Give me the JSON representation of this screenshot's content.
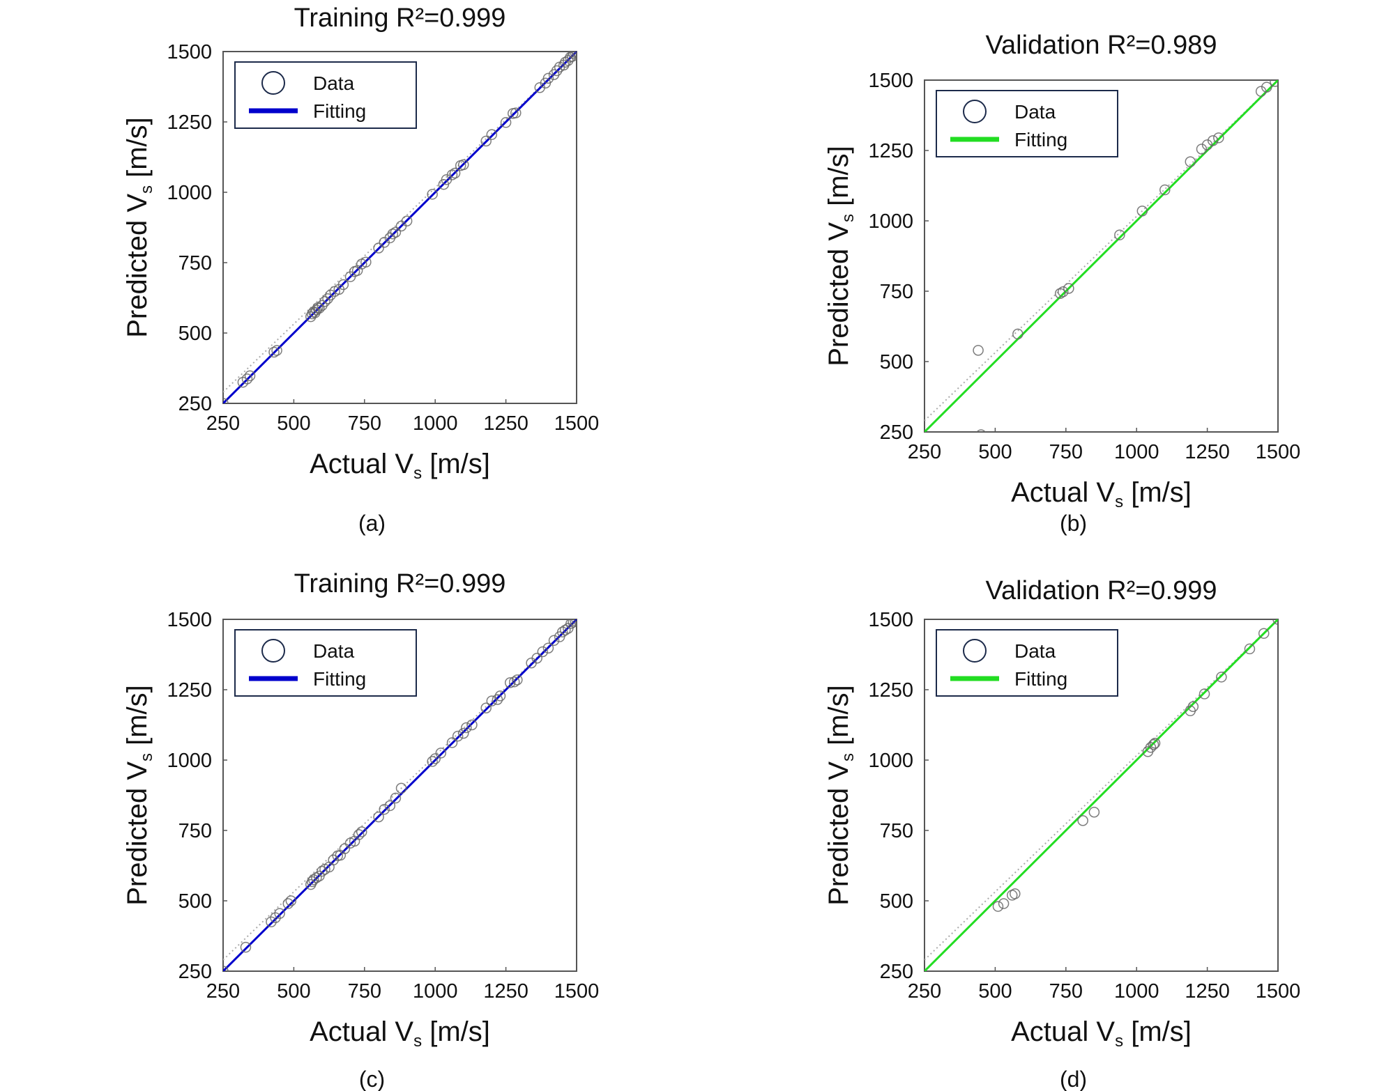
{
  "chart_data": [
    {
      "panel_label": "(a)",
      "type": "scatter",
      "title": "Training  R²=0.999",
      "xlabel": "Actual V",
      "ylabel": "Predicted V",
      "unit": "[m/s]",
      "subscript": "s",
      "xlim": [
        250,
        1500
      ],
      "ylim": [
        250,
        1500
      ],
      "xticks": [
        "250",
        "500",
        "750",
        "1000",
        "1250",
        "1500"
      ],
      "yticks": [
        "250",
        "500",
        "750",
        "1000",
        "1250",
        "1500"
      ],
      "legend": {
        "position": "top-left",
        "entries": [
          "Data",
          "Fitting"
        ]
      },
      "fit_color": "#0000cc",
      "grid": false,
      "fit_line": [
        [
          250,
          250
        ],
        [
          1500,
          1500
        ]
      ],
      "points": [
        [
          250,
          250
        ],
        [
          320,
          325
        ],
        [
          335,
          337
        ],
        [
          345,
          348
        ],
        [
          430,
          432
        ],
        [
          440,
          438
        ],
        [
          560,
          558
        ],
        [
          565,
          568
        ],
        [
          570,
          575
        ],
        [
          575,
          572
        ],
        [
          580,
          582
        ],
        [
          585,
          590
        ],
        [
          590,
          588
        ],
        [
          600,
          598
        ],
        [
          610,
          612
        ],
        [
          620,
          622
        ],
        [
          630,
          635
        ],
        [
          645,
          648
        ],
        [
          660,
          655
        ],
        [
          675,
          672
        ],
        [
          700,
          700
        ],
        [
          715,
          718
        ],
        [
          725,
          722
        ],
        [
          740,
          745
        ],
        [
          755,
          752
        ],
        [
          800,
          802
        ],
        [
          820,
          822
        ],
        [
          840,
          838
        ],
        [
          850,
          852
        ],
        [
          860,
          858
        ],
        [
          880,
          880
        ],
        [
          900,
          898
        ],
        [
          990,
          993
        ],
        [
          1030,
          1028
        ],
        [
          1040,
          1045
        ],
        [
          1060,
          1062
        ],
        [
          1070,
          1068
        ],
        [
          1090,
          1095
        ],
        [
          1100,
          1098
        ],
        [
          1180,
          1182
        ],
        [
          1200,
          1205
        ],
        [
          1250,
          1248
        ],
        [
          1275,
          1280
        ],
        [
          1285,
          1282
        ],
        [
          1370,
          1372
        ],
        [
          1390,
          1388
        ],
        [
          1400,
          1405
        ],
        [
          1420,
          1418
        ],
        [
          1430,
          1432
        ],
        [
          1440,
          1445
        ],
        [
          1455,
          1452
        ],
        [
          1460,
          1462
        ],
        [
          1470,
          1468
        ],
        [
          1478,
          1480
        ],
        [
          1485,
          1483
        ],
        [
          1490,
          1492
        ],
        [
          1495,
          1497
        ],
        [
          1500,
          1500
        ]
      ]
    },
    {
      "panel_label": "(b)",
      "type": "scatter",
      "title": "Validation   R²=0.989",
      "xlabel": "Actual V",
      "ylabel": "Predicted V",
      "unit": "[m/s]",
      "subscript": "s",
      "xlim": [
        250,
        1500
      ],
      "ylim": [
        250,
        1500
      ],
      "xticks": [
        "250",
        "500",
        "750",
        "1000",
        "1250",
        "1500"
      ],
      "yticks": [
        "250",
        "500",
        "750",
        "1000",
        "1250",
        "1500"
      ],
      "legend": {
        "position": "top-left",
        "entries": [
          "Data",
          "Fitting"
        ]
      },
      "fit_color": "#22dd22",
      "grid": false,
      "fit_line": [
        [
          250,
          250
        ],
        [
          1500,
          1500
        ]
      ],
      "points": [
        [
          440,
          540
        ],
        [
          450,
          240
        ],
        [
          580,
          598
        ],
        [
          730,
          742
        ],
        [
          740,
          748
        ],
        [
          760,
          760
        ],
        [
          940,
          950
        ],
        [
          1020,
          1035
        ],
        [
          1100,
          1110
        ],
        [
          1190,
          1210
        ],
        [
          1230,
          1255
        ],
        [
          1250,
          1270
        ],
        [
          1270,
          1285
        ],
        [
          1290,
          1295
        ],
        [
          1440,
          1460
        ],
        [
          1460,
          1475
        ],
        [
          1490,
          1495
        ]
      ]
    },
    {
      "panel_label": "(c)",
      "type": "scatter",
      "title": "Training  R²=0.999",
      "xlabel": "Actual V",
      "ylabel": "Predicted V",
      "unit": "[m/s]",
      "subscript": "s",
      "xlim": [
        250,
        1500
      ],
      "ylim": [
        250,
        1500
      ],
      "xticks": [
        "250",
        "500",
        "750",
        "1000",
        "1250",
        "1500"
      ],
      "yticks": [
        "250",
        "500",
        "750",
        "1000",
        "1250",
        "1500"
      ],
      "legend": {
        "position": "top-left",
        "entries": [
          "Data",
          "Fitting"
        ]
      },
      "fit_color": "#0000cc",
      "grid": false,
      "fit_line": [
        [
          250,
          250
        ],
        [
          1500,
          1500
        ]
      ],
      "points": [
        [
          250,
          250
        ],
        [
          330,
          335
        ],
        [
          420,
          425
        ],
        [
          435,
          440
        ],
        [
          450,
          455
        ],
        [
          480,
          490
        ],
        [
          490,
          500
        ],
        [
          560,
          558
        ],
        [
          565,
          568
        ],
        [
          570,
          575
        ],
        [
          580,
          582
        ],
        [
          590,
          588
        ],
        [
          600,
          605
        ],
        [
          610,
          612
        ],
        [
          625,
          620
        ],
        [
          640,
          645
        ],
        [
          655,
          660
        ],
        [
          665,
          662
        ],
        [
          680,
          685
        ],
        [
          700,
          705
        ],
        [
          715,
          712
        ],
        [
          730,
          735
        ],
        [
          740,
          745
        ],
        [
          800,
          798
        ],
        [
          820,
          825
        ],
        [
          840,
          838
        ],
        [
          860,
          865
        ],
        [
          880,
          900
        ],
        [
          990,
          995
        ],
        [
          1000,
          1005
        ],
        [
          1020,
          1025
        ],
        [
          1060,
          1062
        ],
        [
          1080,
          1085
        ],
        [
          1100,
          1095
        ],
        [
          1110,
          1115
        ],
        [
          1130,
          1125
        ],
        [
          1180,
          1185
        ],
        [
          1200,
          1210
        ],
        [
          1220,
          1215
        ],
        [
          1230,
          1228
        ],
        [
          1265,
          1275
        ],
        [
          1280,
          1278
        ],
        [
          1290,
          1285
        ],
        [
          1340,
          1345
        ],
        [
          1360,
          1362
        ],
        [
          1380,
          1385
        ],
        [
          1400,
          1398
        ],
        [
          1420,
          1425
        ],
        [
          1440,
          1438
        ],
        [
          1450,
          1455
        ],
        [
          1460,
          1462
        ],
        [
          1470,
          1468
        ],
        [
          1480,
          1485
        ],
        [
          1488,
          1490
        ],
        [
          1495,
          1495
        ],
        [
          1500,
          1500
        ]
      ]
    },
    {
      "panel_label": "(d)",
      "type": "scatter",
      "title": "Validation   R²=0.999",
      "xlabel": "Actual V",
      "ylabel": "Predicted V",
      "unit": "[m/s]",
      "subscript": "s",
      "xlim": [
        250,
        1500
      ],
      "ylim": [
        250,
        1500
      ],
      "xticks": [
        "250",
        "500",
        "750",
        "1000",
        "1250",
        "1500"
      ],
      "yticks": [
        "250",
        "500",
        "750",
        "1000",
        "1250",
        "1500"
      ],
      "legend": {
        "position": "top-left",
        "entries": [
          "Data",
          "Fitting"
        ]
      },
      "fit_color": "#22dd22",
      "grid": false,
      "fit_line": [
        [
          250,
          250
        ],
        [
          1500,
          1500
        ]
      ],
      "points": [
        [
          510,
          480
        ],
        [
          530,
          490
        ],
        [
          560,
          520
        ],
        [
          570,
          525
        ],
        [
          810,
          785
        ],
        [
          850,
          815
        ],
        [
          1040,
          1030
        ],
        [
          1050,
          1045
        ],
        [
          1060,
          1055
        ],
        [
          1065,
          1060
        ],
        [
          1190,
          1175
        ],
        [
          1200,
          1190
        ],
        [
          1240,
          1235
        ],
        [
          1300,
          1295
        ],
        [
          1400,
          1395
        ],
        [
          1450,
          1450
        ],
        [
          1500,
          1500
        ]
      ]
    }
  ]
}
